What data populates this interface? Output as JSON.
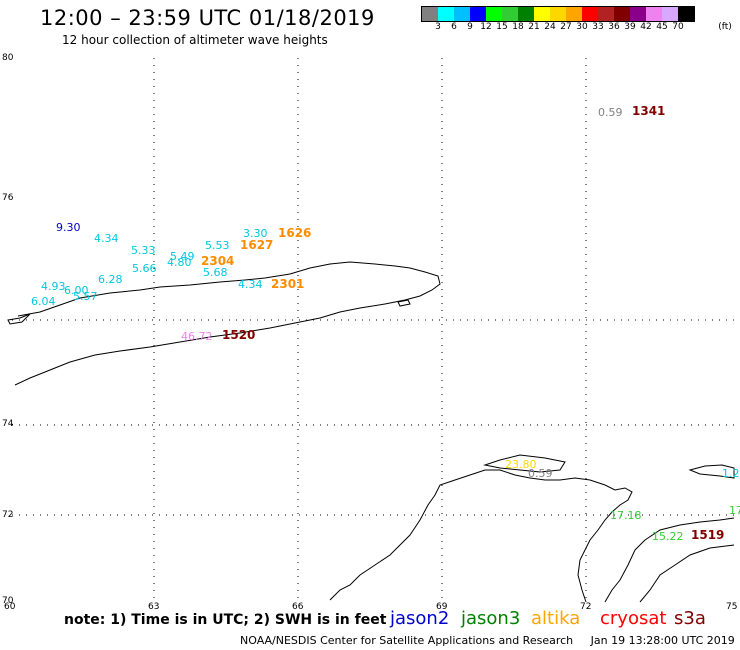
{
  "header": {
    "title": "12:00 – 23:59 UTC 01/18/2019",
    "subtitle": "12 hour collection of altimeter wave heights"
  },
  "legend": {
    "ticks": [
      "3",
      "6",
      "9",
      "12",
      "15",
      "18",
      "21",
      "24",
      "27",
      "30",
      "33",
      "36",
      "39",
      "42",
      "45",
      "70"
    ],
    "unit": "(ft)",
    "colors": [
      "#808080",
      "#00ffff",
      "#00bfff",
      "#0000ff",
      "#00ff00",
      "#32cd32",
      "#008000",
      "#ffff00",
      "#ffd700",
      "#ffa500",
      "#ff0000",
      "#b22222",
      "#800000",
      "#8b008b",
      "#ee82ee",
      "#d8a8ff",
      "#000000"
    ]
  },
  "axes": {
    "lat_labels": [
      "80",
      "76",
      "74",
      "72",
      "70"
    ],
    "lon_labels": [
      "60",
      "63",
      "66",
      "69",
      "72",
      "75"
    ]
  },
  "observations": [
    {
      "text": "0.59",
      "color": "#808080"
    },
    {
      "text": "9.30",
      "color": "#0000cd"
    },
    {
      "text": "4.34",
      "color": "#00c8e0"
    },
    {
      "text": "5.33",
      "color": "#00c8e0"
    },
    {
      "text": "5.53",
      "color": "#00c8e0"
    },
    {
      "text": "3.30",
      "color": "#00c8e0"
    },
    {
      "text": "5.49",
      "color": "#00c8e0"
    },
    {
      "text": "4.80",
      "color": "#00c8e0"
    },
    {
      "text": "5.66",
      "color": "#00c8e0"
    },
    {
      "text": "5.68",
      "color": "#00c8e0"
    },
    {
      "text": "6.28",
      "color": "#00c8e0"
    },
    {
      "text": "4.34",
      "color": "#00c8e0"
    },
    {
      "text": "4.93",
      "color": "#00c8e0"
    },
    {
      "text": "6.00",
      "color": "#00c8e0"
    },
    {
      "text": "5.57",
      "color": "#00c8e0"
    },
    {
      "text": "6.04",
      "color": "#00c8e0"
    },
    {
      "text": "46.72",
      "color": "#ee82ee"
    },
    {
      "text": "23.80",
      "color": "#ffd700"
    },
    {
      "text": "0.59",
      "color": "#808080"
    },
    {
      "text": "17.18",
      "color": "#32cd32"
    },
    {
      "text": "15.22",
      "color": "#32cd32"
    },
    {
      "text": "1.2",
      "color": "#00c8e0"
    },
    {
      "text": "17",
      "color": "#32cd32"
    }
  ],
  "pass_times": [
    {
      "text": "1341",
      "color": "#800000"
    },
    {
      "text": "1626",
      "color": "#ff8c00"
    },
    {
      "text": "1627",
      "color": "#ff8c00"
    },
    {
      "text": "2304",
      "color": "#ff8c00"
    },
    {
      "text": "2301",
      "color": "#ff8c00"
    },
    {
      "text": "1520",
      "color": "#800000"
    },
    {
      "text": "1519",
      "color": "#800000"
    }
  ],
  "footer": {
    "note": "note: 1) Time is in UTC; 2) SWH is in feet",
    "satellites": [
      {
        "name": "jason2",
        "color": "#0000cd"
      },
      {
        "name": "jason3",
        "color": "#008000"
      },
      {
        "name": "altika",
        "color": "#ffa500"
      },
      {
        "name": "cryosat",
        "color": "#ff0000"
      },
      {
        "name": "s3a",
        "color": "#800000"
      }
    ],
    "credit": "NOAA/NESDIS Center for Satellite Applications and Research",
    "timestamp": "Jan 19 13:28:00 UTC 2019"
  }
}
